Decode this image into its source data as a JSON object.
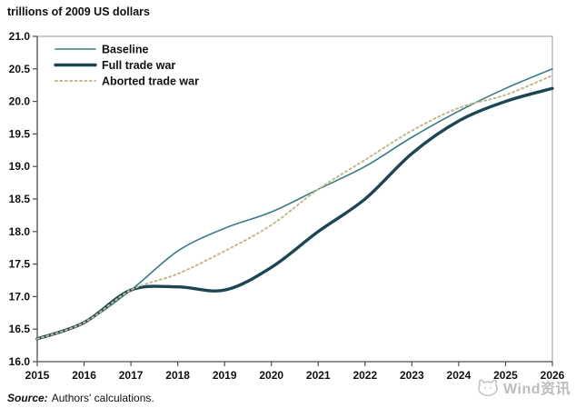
{
  "header": {
    "units_label": "trillions of 2009 US dollars"
  },
  "footer": {
    "source_prefix": "Source:",
    "source_text": "Authors' calculations."
  },
  "watermark": {
    "text": "Wind资讯",
    "logo": "wind-kitten-logo",
    "color": "#bdbdbd"
  },
  "colors": {
    "baseline": "#3a7c85",
    "full_trade_war": "#1c4654",
    "aborted_trade_war": "#c5b78e",
    "axis": "#4d4d4d",
    "frame_light": "#9b9b9b",
    "text": "#111111"
  },
  "chart_data": {
    "type": "line",
    "title": "trillions of 2009 US dollars",
    "xlabel": "",
    "ylabel": "trillions of 2009 US dollars",
    "x": [
      2015,
      2016,
      2017,
      2018,
      2019,
      2020,
      2021,
      2022,
      2023,
      2024,
      2025,
      2026
    ],
    "series": [
      {
        "name": "Baseline",
        "color": "#3a7c85",
        "style": "solid-thin",
        "values": [
          16.35,
          16.6,
          17.1,
          17.7,
          18.05,
          18.3,
          18.65,
          19.0,
          19.45,
          19.85,
          20.2,
          20.5
        ]
      },
      {
        "name": "Full trade war",
        "color": "#1c4654",
        "style": "solid-thick",
        "values": [
          16.35,
          16.6,
          17.1,
          17.15,
          17.1,
          17.45,
          18.0,
          18.5,
          19.2,
          19.7,
          20.0,
          20.2
        ]
      },
      {
        "name": "Aborted trade war",
        "color": "#c5b78e",
        "style": "dotted",
        "values": [
          16.35,
          16.6,
          17.1,
          17.35,
          17.7,
          18.1,
          18.65,
          19.1,
          19.55,
          19.9,
          20.1,
          20.4
        ]
      }
    ],
    "ylim": [
      16.0,
      21.0
    ],
    "ytick_step": 0.5,
    "ytick_labels": [
      "16.0",
      "16.5",
      "17.0",
      "17.5",
      "18.0",
      "18.5",
      "19.0",
      "19.5",
      "20.0",
      "20.5",
      "21.0"
    ],
    "xtick_labels": [
      "2015",
      "2016",
      "2017",
      "2018",
      "2019",
      "2020",
      "2021",
      "2022",
      "2023",
      "2024",
      "2025",
      "2026"
    ],
    "grid": false,
    "legend_position": "top-left"
  }
}
